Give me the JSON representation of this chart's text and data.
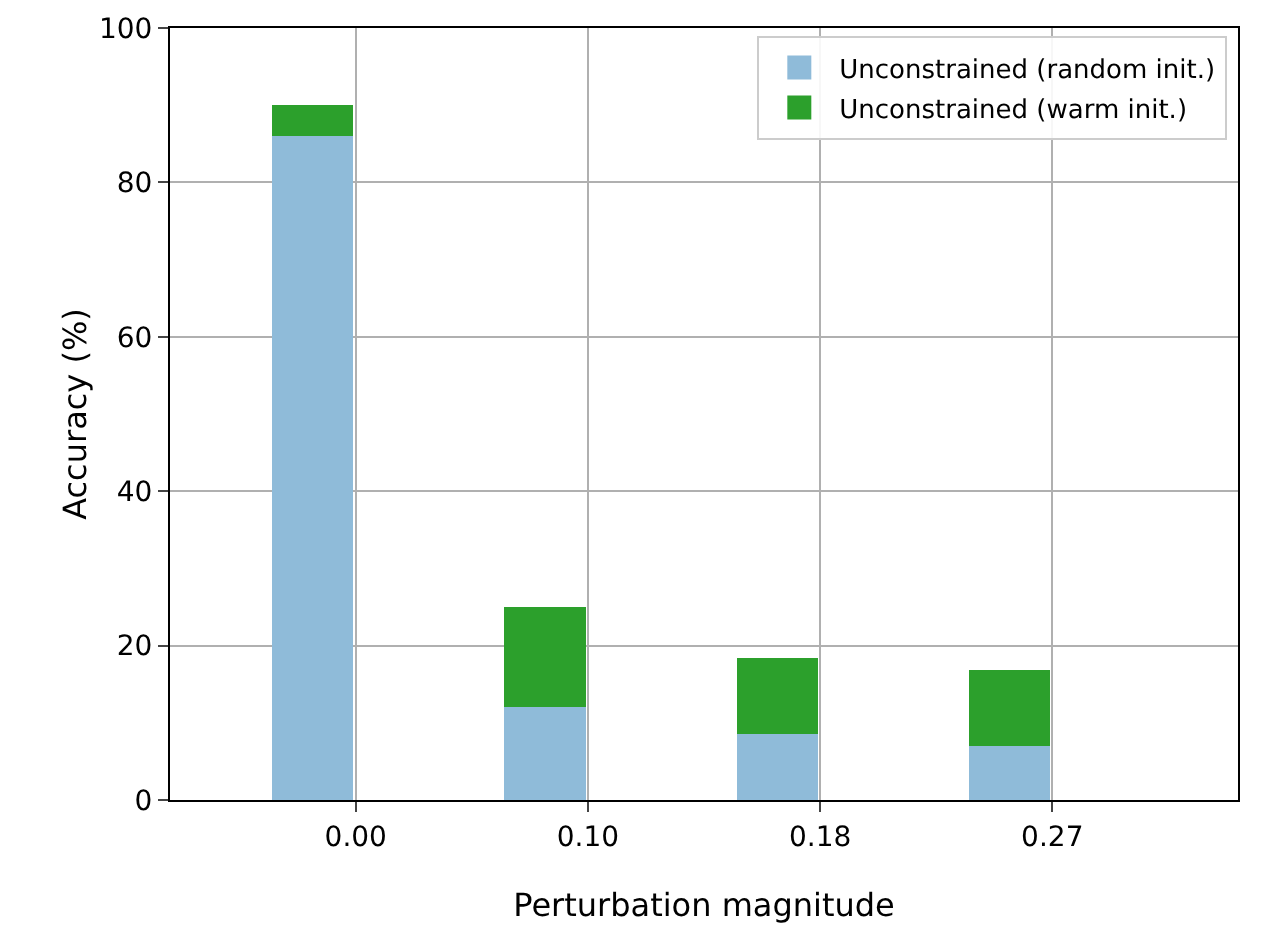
{
  "chart_data": {
    "type": "bar",
    "stacked": true,
    "xlabel": "Perturbation magnitude",
    "ylabel": "Accuracy (%)",
    "categories": [
      "0.00",
      "0.10",
      "0.18",
      "0.27"
    ],
    "series": [
      {
        "name": "Unconstrained (random init.)",
        "color": "#8fbbd9",
        "values": [
          86,
          12,
          8.5,
          7
        ]
      },
      {
        "name": "Unconstrained (warm init.)",
        "color": "#2ca02c",
        "values": [
          4,
          13,
          9.9,
          9.8
        ]
      }
    ],
    "ylim": [
      0,
      100
    ],
    "yticks": [
      0,
      20,
      40,
      60,
      80,
      100
    ],
    "grid": true,
    "legend": "top right"
  }
}
